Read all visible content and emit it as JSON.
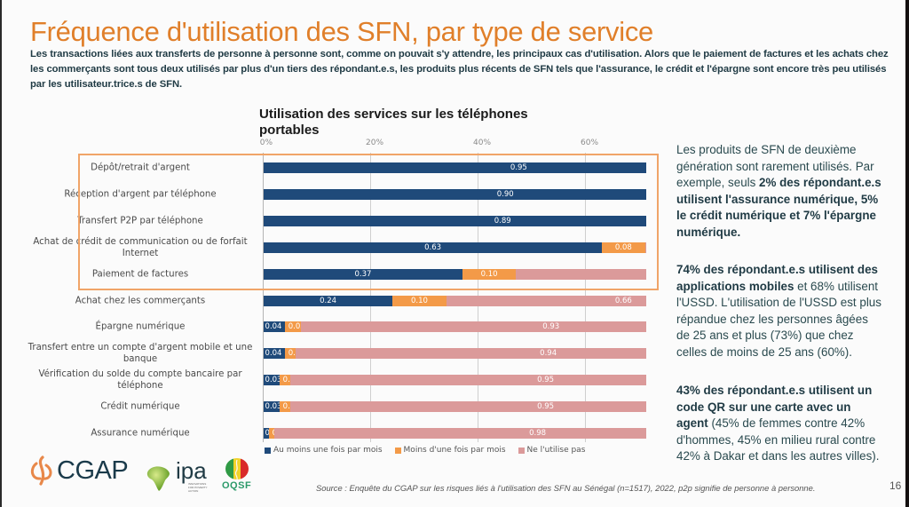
{
  "slide": {
    "title": "Fréquence d'utilisation des SFN, par type de service",
    "intro": "Les transactions liées aux transferts de personne à personne sont, comme on pouvait s'y attendre, les principaux cas d'utilisation. Alors que le paiement de factures et les achats chez les commerçants sont tous deux utilisés par plus d'un tiers des répondant.e.s, les produits plus récents de SFN tels que l'assurance, le crédit et l'épargne sont encore très peu utilisés par les utilisateur.trice.s de SFN.",
    "page_number": "16",
    "source": "Source : Enquête du CGAP sur les risques liés à l'utilisation des SFN au Sénégal (n=1517), 2022, p2p signifie de personne à personne."
  },
  "side_panel": {
    "block1": {
      "plain1": "Les produits de SFN de deuxième génération sont rarement utilisés. Par exemple, seuls ",
      "bold1": "2% des répondant.e.s utilisent l'assurance numérique, 5% le crédit numérique et 7% l'épargne numérique."
    },
    "block2": {
      "bold1": "74% des répondant.e.s utilisent des applications mobiles",
      "plain1": " et 68% utilisent l'USSD. L'utilisation de l'USSD est plus répandue chez les personnes âgées de 25 ans et plus (73%) que chez celles de moins de 25 ans (60%)."
    },
    "block3": {
      "bold1": "43% des répondant.e.s utilisent un code QR sur une carte avec un agent",
      "plain1": " (45% de femmes contre 42% d'hommes, 45% en milieu rural contre 42% à Dakar et dans les autres villes)."
    }
  },
  "logos": {
    "cgap": "CGAP",
    "ipa": "ipa",
    "ipa_tagline": "INNOVATIONS FOR POVERTY ACTION",
    "oqsf": "OQSF"
  },
  "colors": {
    "title_orange": "#e07f2a",
    "series_monthly": "#1f4a7a",
    "series_less": "#f39a48",
    "series_never": "#db9a9a",
    "highlight_box": "#f0a468"
  },
  "chart_data": {
    "type": "bar",
    "orientation": "horizontal",
    "stacked": true,
    "title": "Utilisation des services sur les téléphones portables",
    "xlabel": "",
    "ylabel": "",
    "x_ticks": [
      "0%",
      "20%",
      "40%",
      "60%"
    ],
    "x_tick_values": [
      0,
      0.2,
      0.4,
      0.6
    ],
    "xlim_visible": [
      0,
      0.712
    ],
    "grid": true,
    "legend_position": "bottom",
    "highlighted_categories": [
      "Dépôt/retrait d'argent",
      "Réception d'argent par téléphone",
      "Transfert P2P par téléphone",
      "Achat de crédit de communication ou de forfait Internet",
      "Paiement de factures"
    ],
    "categories": [
      "Dépôt/retrait d'argent",
      "Réception d'argent par téléphone",
      "Transfert P2P par téléphone",
      "Achat de crédit de communication ou de forfait Internet",
      "Paiement de factures",
      "Achat chez les commerçants",
      "Épargne numérique",
      "Transfert entre un compte d'argent mobile et une banque",
      "Vérification du solde du compte bancaire par téléphone",
      "Crédit numérique",
      "Assurance numérique"
    ],
    "series": [
      {
        "name": "Au moins une fois par mois",
        "color": "#1f4a7a",
        "values": [
          0.95,
          0.9,
          0.89,
          0.63,
          0.37,
          0.24,
          0.04,
          0.04,
          0.03,
          0.03,
          0.01
        ],
        "labels": [
          "0.95",
          "0.90",
          "0.89",
          "0.63",
          "0.37",
          "0.24",
          "0.04",
          "0.04",
          "0.03",
          "0.03",
          "0.01"
        ]
      },
      {
        "name": "Moins d'une fois par mois",
        "color": "#f39a48",
        "values": [
          null,
          null,
          null,
          0.08,
          0.1,
          0.1,
          0.03,
          0.02,
          0.02,
          0.02,
          0.01
        ],
        "labels": [
          "",
          "",
          "",
          "0.08",
          "0.10",
          "0.10",
          "0.03",
          "0.02",
          "0.02",
          "0.02",
          "0.01"
        ]
      },
      {
        "name": "Ne l'utilise pas",
        "color": "#db9a9a",
        "values": [
          null,
          null,
          null,
          null,
          null,
          0.66,
          0.93,
          0.94,
          0.95,
          0.95,
          0.98
        ],
        "labels": [
          "",
          "",
          "",
          "",
          "",
          "0.66",
          "0.93",
          "0.94",
          "0.95",
          "0.95",
          "0.98"
        ]
      }
    ]
  }
}
